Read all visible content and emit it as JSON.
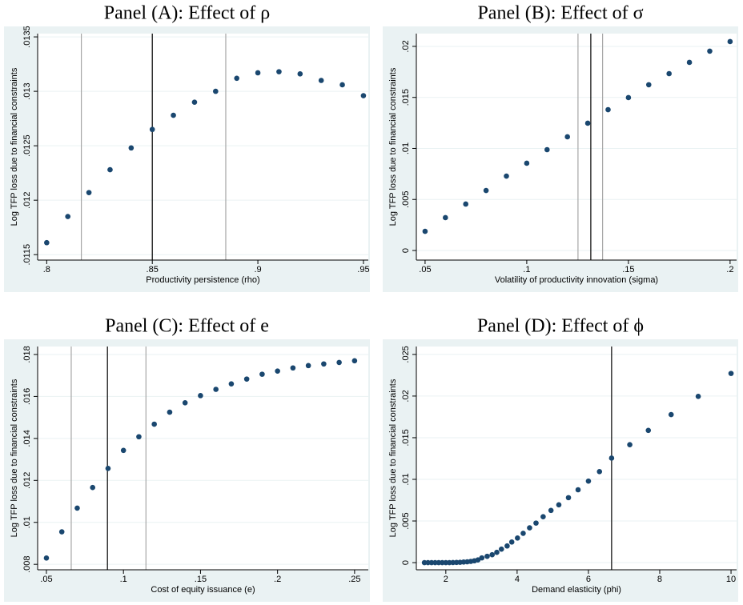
{
  "chart_data": [
    {
      "type": "scatter",
      "title": "Panel (A): Effect of ρ",
      "xlabel": "Productivity persistence (rho)",
      "ylabel": "Log TFP loss due to financial constraints",
      "color": "#1a476f",
      "grid": true,
      "x": [
        0.8,
        0.81,
        0.82,
        0.83,
        0.84,
        0.85,
        0.86,
        0.87,
        0.88,
        0.89,
        0.9,
        0.91,
        0.92,
        0.93,
        0.94,
        0.95
      ],
      "values": [
        0.01161,
        0.01185,
        0.01207,
        0.01228,
        0.01248,
        0.01265,
        0.01278,
        0.0129,
        0.013,
        0.01312,
        0.01317,
        0.01318,
        0.01316,
        0.0131,
        0.01306,
        0.01296
      ],
      "xlim": [
        0.7957,
        0.9523
      ],
      "ylim": [
        0.01145,
        0.01353
      ],
      "xticks": [
        {
          "value": 0.8,
          "label": ".8"
        },
        {
          "value": 0.85,
          "label": ".85"
        },
        {
          "value": 0.9,
          "label": ".9"
        },
        {
          "value": 0.95,
          "label": ".95"
        }
      ],
      "yticks": [
        {
          "value": 0.0115,
          "label": ".0115"
        },
        {
          "value": 0.012,
          "label": ".012"
        },
        {
          "value": 0.0125,
          "label": ".0125"
        },
        {
          "value": 0.013,
          "label": ".013"
        },
        {
          "value": 0.0135,
          "label": ".0135"
        }
      ],
      "vlines": [
        {
          "value": 0.8164,
          "color": "#a6a6a6"
        },
        {
          "value": 0.85,
          "color": "#000000"
        },
        {
          "value": 0.8848,
          "color": "#a6a6a6"
        }
      ]
    },
    {
      "type": "scatter",
      "title": "Panel (B): Effect of σ",
      "xlabel": "Volatility of productivity innovation (sigma)",
      "ylabel": "Log TFP loss due to financial constraints",
      "color": "#1a476f",
      "grid": true,
      "x": [
        0.05,
        0.06,
        0.07,
        0.08,
        0.09,
        0.1,
        0.11,
        0.12,
        0.13,
        0.14,
        0.15,
        0.16,
        0.17,
        0.18,
        0.19,
        0.2
      ],
      "values": [
        0.00188,
        0.00322,
        0.00455,
        0.00588,
        0.00729,
        0.00855,
        0.00988,
        0.01114,
        0.01247,
        0.0138,
        0.01498,
        0.01624,
        0.01733,
        0.01843,
        0.01953,
        0.02047
      ],
      "xlim": [
        0.0457,
        0.2032
      ],
      "ylim": [
        -0.00094,
        0.02125
      ],
      "xticks": [
        {
          "value": 0.05,
          "label": ".05"
        },
        {
          "value": 0.1,
          "label": ".1"
        },
        {
          "value": 0.15,
          "label": ".15"
        },
        {
          "value": 0.2,
          "label": ".2"
        }
      ],
      "yticks": [
        0,
        {
          "value": 0.005,
          "label": ".005"
        },
        {
          "value": 0.01,
          "label": ".01"
        },
        {
          "value": 0.015,
          "label": ".015"
        },
        {
          "value": 0.02,
          "label": ".02"
        }
      ],
      "vlines": [
        {
          "value": 0.1252,
          "color": "#a6a6a6"
        },
        {
          "value": 0.1315,
          "color": "#000000"
        },
        {
          "value": 0.1373,
          "color": "#a6a6a6"
        }
      ]
    },
    {
      "type": "scatter",
      "title": "Panel (C): Effect of e",
      "xlabel": "Cost of equity issuance (e)",
      "ylabel": "Log TFP loss due to financial constraints",
      "color": "#1a476f",
      "grid": true,
      "x": [
        0.05,
        0.06,
        0.07,
        0.08,
        0.09,
        0.1,
        0.11,
        0.12,
        0.13,
        0.14,
        0.15,
        0.16,
        0.17,
        0.18,
        0.19,
        0.2,
        0.21,
        0.22,
        0.23,
        0.24,
        0.25
      ],
      "values": [
        0.0083,
        0.00955,
        0.01068,
        0.01166,
        0.01257,
        0.01343,
        0.01408,
        0.01468,
        0.01525,
        0.0157,
        0.01604,
        0.01634,
        0.0166,
        0.01683,
        0.01706,
        0.01721,
        0.01736,
        0.01747,
        0.01755,
        0.01762,
        0.0177
      ],
      "xlim": [
        0.0443,
        0.2589
      ],
      "ylim": [
        0.00774,
        0.01838
      ],
      "xticks": [
        {
          "value": 0.05,
          "label": ".05"
        },
        {
          "value": 0.1,
          "label": ".1"
        },
        {
          "value": 0.15,
          "label": ".15"
        },
        {
          "value": 0.2,
          "label": ".2"
        },
        {
          "value": 0.25,
          "label": ".25"
        }
      ],
      "yticks": [
        {
          "value": 0.008,
          "label": ".008"
        },
        {
          "value": 0.01,
          "label": ".01"
        },
        {
          "value": 0.012,
          "label": ".012"
        },
        {
          "value": 0.014,
          "label": ".014"
        },
        {
          "value": 0.016,
          "label": ".016"
        },
        {
          "value": 0.018,
          "label": ".018"
        }
      ],
      "vlines": [
        {
          "value": 0.0661,
          "color": "#a6a6a6"
        },
        {
          "value": 0.0896,
          "color": "#000000"
        },
        {
          "value": 0.1146,
          "color": "#a6a6a6"
        }
      ]
    },
    {
      "type": "scatter",
      "title": "Panel (D): Effect of ϕ",
      "xlabel": "Demand elasticity (phi)",
      "ylabel": "Log TFP loss due to financial constraints",
      "color": "#1a476f",
      "grid": true,
      "x": [
        1.4,
        1.5,
        1.6,
        1.7,
        1.8,
        1.9,
        2.0,
        2.1,
        2.2,
        2.3,
        2.4,
        2.5,
        2.6,
        2.7,
        2.8,
        2.9,
        3.01,
        3.16,
        3.3,
        3.43,
        3.56,
        3.72,
        3.85,
        4.01,
        4.17,
        4.35,
        4.53,
        4.73,
        4.95,
        5.17,
        5.44,
        5.71,
        6.0,
        6.31,
        6.65,
        7.16,
        7.68,
        8.32,
        9.08,
        10.0
      ],
      "values": [
        0,
        0,
        0,
        0,
        0,
        0,
        0,
        0,
        1e-05,
        2e-05,
        4e-05,
        7e-05,
        0.0001,
        0.00015,
        0.00022,
        0.00032,
        0.00057,
        0.00076,
        0.00095,
        0.00124,
        0.00162,
        0.002,
        0.00247,
        0.00295,
        0.00352,
        0.00418,
        0.00475,
        0.00551,
        0.00627,
        0.00694,
        0.0078,
        0.00875,
        0.00979,
        0.01093,
        0.01255,
        0.01416,
        0.01588,
        0.01778,
        0.01996,
        0.02272
      ],
      "xlim": [
        1.173,
        10.156
      ],
      "ylim": [
        -0.00086,
        0.02595
      ],
      "xticks": [
        2,
        4,
        6,
        8,
        10
      ],
      "yticks": [
        0,
        {
          "value": 0.005,
          "label": ".005"
        },
        {
          "value": 0.01,
          "label": ".01"
        },
        {
          "value": 0.015,
          "label": ".015"
        },
        {
          "value": 0.02,
          "label": ".02"
        },
        {
          "value": 0.025,
          "label": ".025"
        }
      ],
      "vlines": [
        {
          "value": 6.65,
          "color": "#000000"
        }
      ]
    }
  ]
}
